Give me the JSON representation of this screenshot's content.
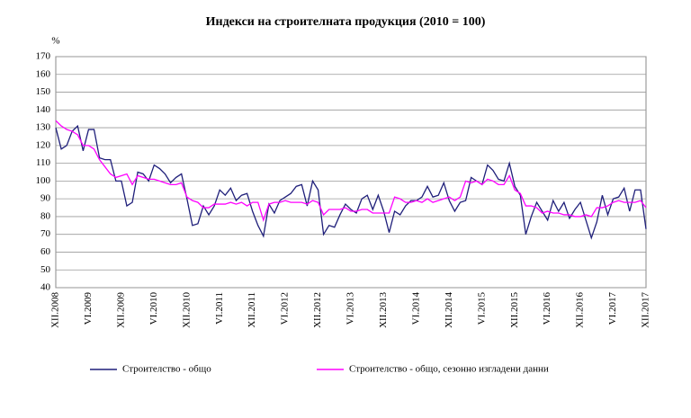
{
  "chart_data": {
    "type": "line",
    "title": "Индекси на строителната продукция (2010 = 100)",
    "y_label": "%",
    "categories": [
      "XII.2008",
      null,
      null,
      null,
      null,
      null,
      "VI.2009",
      null,
      null,
      null,
      null,
      null,
      "XII.2009",
      null,
      null,
      null,
      null,
      null,
      "VI.2010",
      null,
      null,
      null,
      null,
      null,
      "XII.2010",
      null,
      null,
      null,
      null,
      null,
      "VI.2011",
      null,
      null,
      null,
      null,
      null,
      "XII.2011",
      null,
      null,
      null,
      null,
      null,
      "VI.2012",
      null,
      null,
      null,
      null,
      null,
      "XII.2012",
      null,
      null,
      null,
      null,
      null,
      "VI.2013",
      null,
      null,
      null,
      null,
      null,
      "XII.2013",
      null,
      null,
      null,
      null,
      null,
      "VI.2014",
      null,
      null,
      null,
      null,
      null,
      "XII.2014",
      null,
      null,
      null,
      null,
      null,
      "VI.2015",
      null,
      null,
      null,
      null,
      null,
      "XII.2015",
      null,
      null,
      null,
      null,
      null,
      "VI.2016",
      null,
      null,
      null,
      null,
      null,
      "XII.2016",
      null,
      null,
      null,
      null,
      null,
      "VI.2017",
      null,
      null,
      null,
      null,
      null,
      "XII.2017"
    ],
    "series": [
      {
        "name": "Строителство - общо",
        "color": "#1f1f7a",
        "values": [
          130,
          118,
          120,
          128,
          131,
          117,
          129,
          129,
          113,
          112,
          112,
          100,
          100,
          86,
          88,
          105,
          104,
          100,
          109,
          107,
          104,
          99,
          102,
          104,
          90,
          75,
          76,
          86,
          81,
          86,
          95,
          92,
          96,
          89,
          92,
          93,
          83,
          75,
          69,
          87,
          82,
          89,
          91,
          93,
          97,
          98,
          86,
          100,
          95,
          70,
          75,
          74,
          81,
          87,
          84,
          82,
          90,
          92,
          84,
          92,
          83,
          71,
          83,
          81,
          86,
          89,
          89,
          91,
          97,
          91,
          92,
          99,
          89,
          83,
          88,
          89,
          102,
          100,
          98,
          109,
          106,
          101,
          100,
          110,
          97,
          92,
          70,
          80,
          88,
          83,
          78,
          89,
          83,
          88,
          79,
          84,
          88,
          78,
          68,
          77,
          92,
          81,
          90,
          91,
          96,
          83,
          95,
          95,
          73
        ]
      },
      {
        "name": "Строителство - общо, сезонно изгладени данни",
        "color": "#ff00ff",
        "values": [
          134,
          131,
          129,
          128,
          126,
          120,
          120,
          118,
          112,
          108,
          104,
          102,
          103,
          104,
          98,
          103,
          102,
          101,
          101,
          100,
          99,
          98,
          98,
          99,
          91,
          89,
          88,
          85,
          85,
          87,
          87,
          87,
          88,
          87,
          88,
          86,
          88,
          88,
          78,
          87,
          88,
          88,
          89,
          88,
          88,
          88,
          87,
          89,
          88,
          81,
          84,
          84,
          84,
          85,
          83,
          83,
          84,
          84,
          82,
          82,
          82,
          82,
          91,
          90,
          88,
          88,
          89,
          88,
          90,
          88,
          89,
          90,
          91,
          89,
          91,
          100,
          99,
          100,
          98,
          101,
          100,
          98,
          98,
          103,
          95,
          93,
          86,
          86,
          85,
          82,
          83,
          82,
          82,
          81,
          81,
          80,
          80,
          81,
          80,
          85,
          85,
          86,
          88,
          89,
          88,
          88,
          88,
          89,
          85
        ]
      }
    ],
    "ylim": [
      40,
      170
    ],
    "yticks": [
      40,
      50,
      60,
      70,
      80,
      90,
      100,
      110,
      120,
      130,
      140,
      150,
      160,
      170
    ],
    "grid": true
  }
}
